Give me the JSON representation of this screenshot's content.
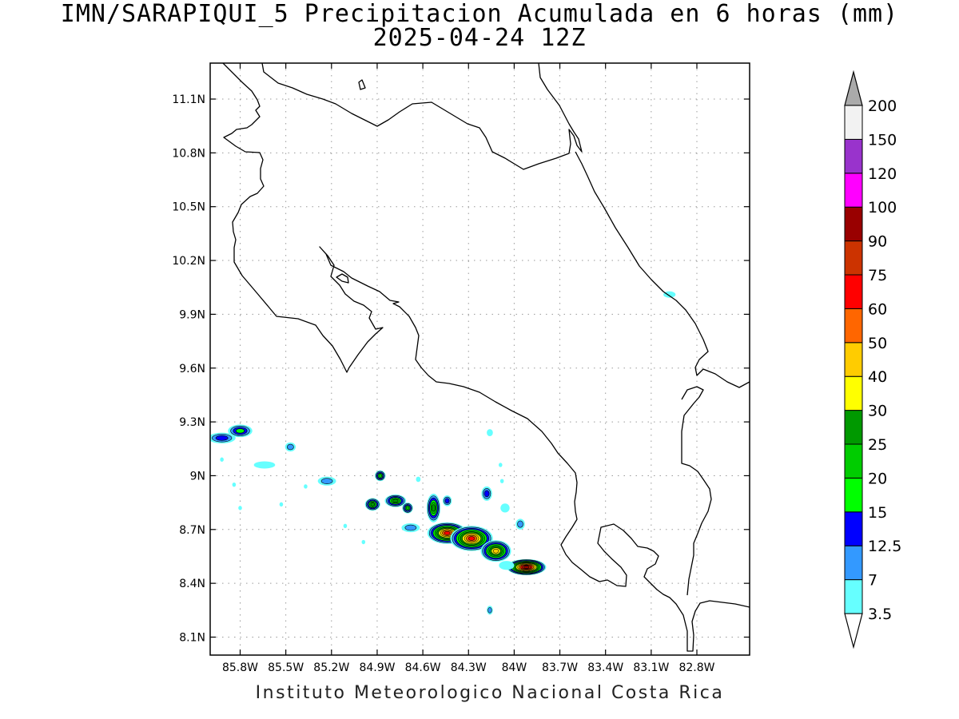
{
  "title": {
    "line1": "IMN/SARAPIQUI_5 Precipitacion Acumulada en 6 horas (mm)",
    "line2": "2025-04-24 12Z"
  },
  "footer": "Instituto Meteorologico Nacional Costa Rica",
  "map": {
    "lon_range": [
      -86.0,
      -82.5
    ],
    "lat_range": [
      8.0,
      11.3
    ],
    "lon_ticks": [
      {
        "v": -85.8,
        "label": "85.8W"
      },
      {
        "v": -85.5,
        "label": "85.5W"
      },
      {
        "v": -85.2,
        "label": "85.2W"
      },
      {
        "v": -84.9,
        "label": "84.9W"
      },
      {
        "v": -84.6,
        "label": "84.6W"
      },
      {
        "v": -84.3,
        "label": "84.3W"
      },
      {
        "v": -84.0,
        "label": "84W"
      },
      {
        "v": -83.7,
        "label": "83.7W"
      },
      {
        "v": -83.4,
        "label": "83.4W"
      },
      {
        "v": -83.1,
        "label": "83.1W"
      },
      {
        "v": -82.8,
        "label": "82.8W"
      }
    ],
    "lat_ticks": [
      {
        "v": 8.1,
        "label": "8.1N"
      },
      {
        "v": 8.4,
        "label": "8.4N"
      },
      {
        "v": 8.7,
        "label": "8.7N"
      },
      {
        "v": 9.0,
        "label": "9N"
      },
      {
        "v": 9.3,
        "label": "9.3N"
      },
      {
        "v": 9.6,
        "label": "9.6N"
      },
      {
        "v": 9.9,
        "label": "9.9N"
      },
      {
        "v": 10.2,
        "label": "10.2N"
      },
      {
        "v": 10.5,
        "label": "10.5N"
      },
      {
        "v": 10.8,
        "label": "10.8N"
      },
      {
        "v": 11.1,
        "label": "11.1N"
      }
    ],
    "grid": "dotted",
    "coastline_color": "#000000"
  },
  "colorbar": {
    "levels": [
      "3.5",
      "7",
      "12.5",
      "15",
      "20",
      "25",
      "30",
      "40",
      "50",
      "60",
      "75",
      "90",
      "100",
      "120",
      "150",
      "200"
    ],
    "colors": [
      "#66ffff",
      "#3399ff",
      "#0000ff",
      "#00ff00",
      "#00cc00",
      "#009900",
      "#ffff00",
      "#ffcc00",
      "#ff6600",
      "#ff0000",
      "#cc3300",
      "#990000",
      "#ff00ff",
      "#9933cc",
      "#f2f2f2"
    ],
    "upper_arrow_color": "#aaaaaa",
    "lower_arrow_color": "#ffffff"
  },
  "precip_cells": [
    {
      "lon": -85.92,
      "lat": 9.21,
      "rx": 0.09,
      "ry": 0.03,
      "max": 3
    },
    {
      "lon": -85.8,
      "lat": 9.25,
      "rx": 0.08,
      "ry": 0.035,
      "max": 4
    },
    {
      "lon": -85.47,
      "lat": 9.16,
      "rx": 0.035,
      "ry": 0.025,
      "max": 2
    },
    {
      "lon": -85.64,
      "lat": 9.06,
      "rx": 0.07,
      "ry": 0.02,
      "max": 1
    },
    {
      "lon": -85.23,
      "lat": 8.97,
      "rx": 0.06,
      "ry": 0.025,
      "max": 2
    },
    {
      "lon": -84.88,
      "lat": 9.0,
      "rx": 0.035,
      "ry": 0.03,
      "max": 5
    },
    {
      "lon": -84.93,
      "lat": 8.84,
      "rx": 0.05,
      "ry": 0.035,
      "max": 6
    },
    {
      "lon": -84.78,
      "lat": 8.86,
      "rx": 0.07,
      "ry": 0.035,
      "max": 6
    },
    {
      "lon": -84.7,
      "lat": 8.82,
      "rx": 0.035,
      "ry": 0.03,
      "max": 5
    },
    {
      "lon": -84.53,
      "lat": 8.82,
      "rx": 0.045,
      "ry": 0.08,
      "max": 6
    },
    {
      "lon": -84.44,
      "lat": 8.86,
      "rx": 0.03,
      "ry": 0.03,
      "max": 3
    },
    {
      "lon": -84.44,
      "lat": 8.68,
      "rx": 0.13,
      "ry": 0.06,
      "max": 10
    },
    {
      "lon": -84.28,
      "lat": 8.65,
      "rx": 0.14,
      "ry": 0.07,
      "max": 10
    },
    {
      "lon": -84.12,
      "lat": 8.58,
      "rx": 0.1,
      "ry": 0.06,
      "max": 8
    },
    {
      "lon": -83.92,
      "lat": 8.49,
      "rx": 0.13,
      "ry": 0.045,
      "max": 12
    },
    {
      "lon": -84.18,
      "lat": 8.9,
      "rx": 0.035,
      "ry": 0.04,
      "max": 3
    },
    {
      "lon": -84.06,
      "lat": 8.82,
      "rx": 0.03,
      "ry": 0.025,
      "max": 1
    },
    {
      "lon": -83.96,
      "lat": 8.73,
      "rx": 0.03,
      "ry": 0.03,
      "max": 2
    },
    {
      "lon": -84.05,
      "lat": 8.5,
      "rx": 0.05,
      "ry": 0.025,
      "max": 1
    },
    {
      "lon": -84.68,
      "lat": 8.71,
      "rx": 0.06,
      "ry": 0.025,
      "max": 2
    },
    {
      "lon": -84.16,
      "lat": 8.25,
      "rx": 0.02,
      "ry": 0.025,
      "max": 2
    },
    {
      "lon": -84.16,
      "lat": 9.24,
      "rx": 0.02,
      "ry": 0.02,
      "max": 1
    },
    {
      "lon": -82.98,
      "lat": 10.01,
      "rx": 0.04,
      "ry": 0.018,
      "max": 1
    },
    {
      "lon": -85.92,
      "lat": 9.09,
      "rx": 0.012,
      "ry": 0.012,
      "max": 1
    },
    {
      "lon": -85.84,
      "lat": 8.95,
      "rx": 0.012,
      "ry": 0.012,
      "max": 1
    },
    {
      "lon": -85.8,
      "lat": 8.82,
      "rx": 0.012,
      "ry": 0.012,
      "max": 1
    },
    {
      "lon": -85.53,
      "lat": 8.84,
      "rx": 0.012,
      "ry": 0.012,
      "max": 1
    },
    {
      "lon": -85.37,
      "lat": 8.94,
      "rx": 0.012,
      "ry": 0.012,
      "max": 1
    },
    {
      "lon": -85.11,
      "lat": 8.72,
      "rx": 0.012,
      "ry": 0.012,
      "max": 1
    },
    {
      "lon": -84.99,
      "lat": 8.63,
      "rx": 0.012,
      "ry": 0.012,
      "max": 1
    },
    {
      "lon": -84.63,
      "lat": 8.98,
      "rx": 0.015,
      "ry": 0.015,
      "max": 1
    },
    {
      "lon": -84.09,
      "lat": 9.06,
      "rx": 0.012,
      "ry": 0.012,
      "max": 1
    },
    {
      "lon": -84.08,
      "lat": 8.97,
      "rx": 0.012,
      "ry": 0.012,
      "max": 1
    }
  ]
}
